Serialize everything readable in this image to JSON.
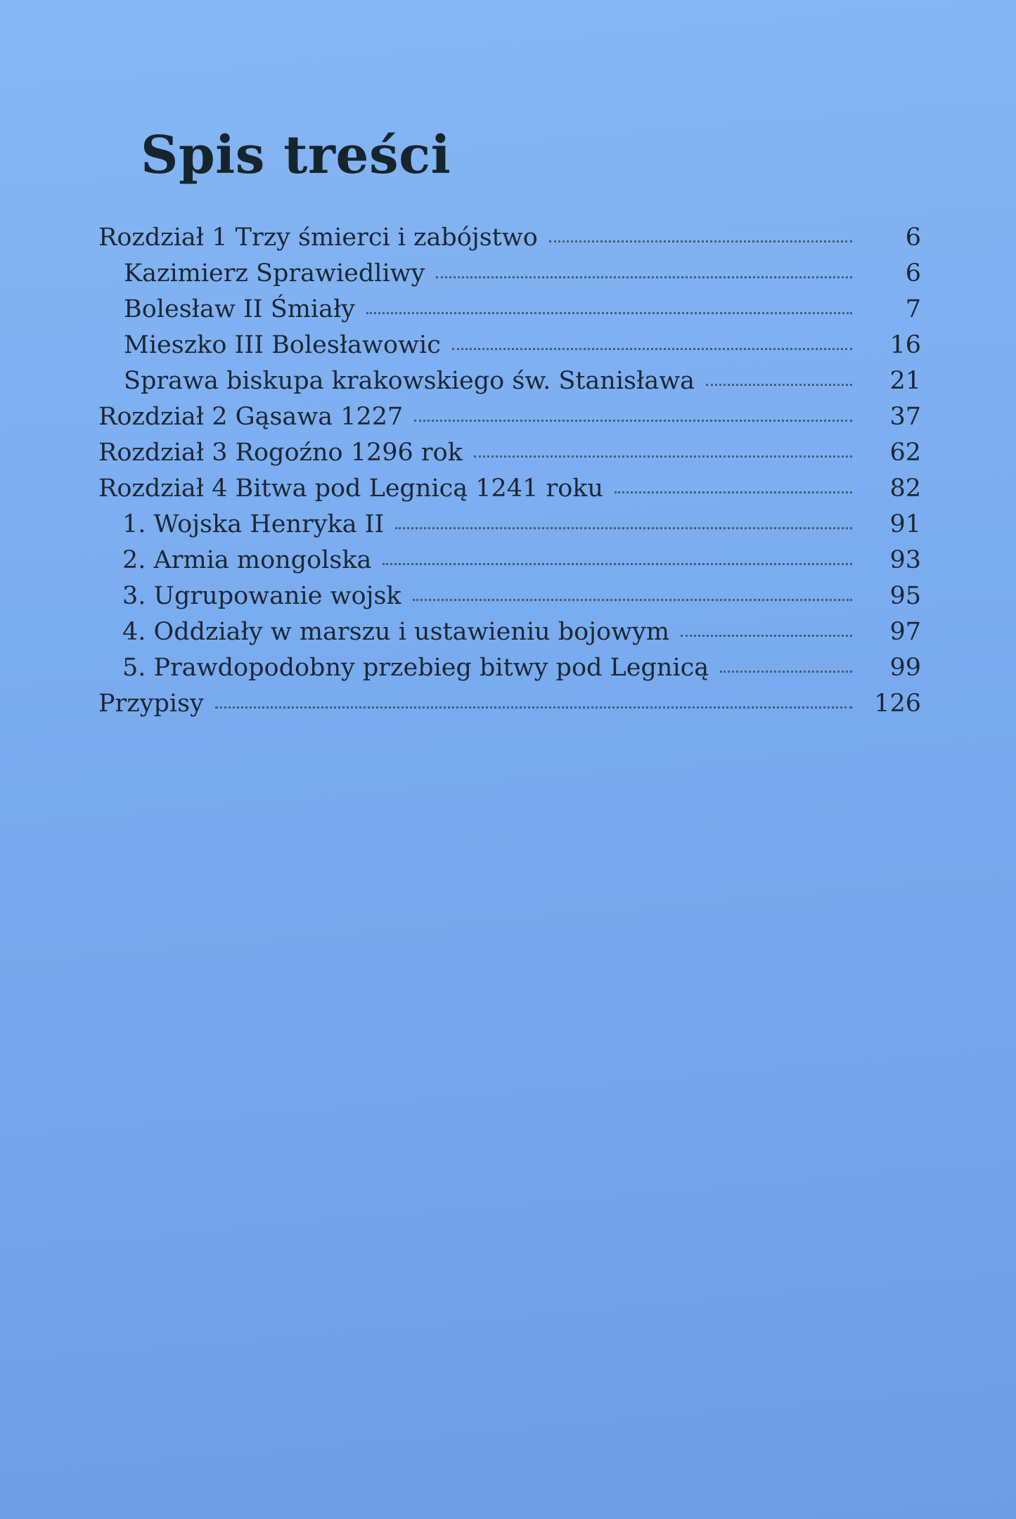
{
  "title": "Spis treści",
  "entries": [
    {
      "label": "Rozdział 1  Trzy śmierci i zabójstwo",
      "page": "6",
      "level": 0
    },
    {
      "label": "Kazimierz Sprawiedliwy",
      "page": "6",
      "level": 1
    },
    {
      "label": "Bolesław II Śmiały",
      "page": "7",
      "level": 1
    },
    {
      "label": "Mieszko III Bolesławowic",
      "page": "16",
      "level": 1
    },
    {
      "label": "Sprawa biskupa krakowskiego św. Stanisława",
      "page": "21",
      "level": 1
    },
    {
      "label": "Rozdział 2 Gąsawa 1227",
      "page": "37",
      "level": 0
    },
    {
      "label": "Rozdział 3 Rogoźno 1296 rok",
      "page": "62",
      "level": 0
    },
    {
      "label": "Rozdział 4 Bitwa pod Legnicą 1241 roku",
      "page": "82",
      "level": 0
    },
    {
      "label": "1. Wojska Henryka II",
      "page": "91",
      "level": 1
    },
    {
      "label": "2. Armia mongolska",
      "page": "93",
      "level": 1
    },
    {
      "label": "3. Ugrupowanie wojsk",
      "page": "95",
      "level": 1
    },
    {
      "label": "4. Oddziały w marszu i ustawieniu bojowym",
      "page": "97",
      "level": 1
    },
    {
      "label": "5. Prawdopodobny przebieg bitwy pod Legnicą",
      "page": "99",
      "level": 1
    },
    {
      "label": "Przypisy",
      "page": "126",
      "level": 0
    }
  ]
}
